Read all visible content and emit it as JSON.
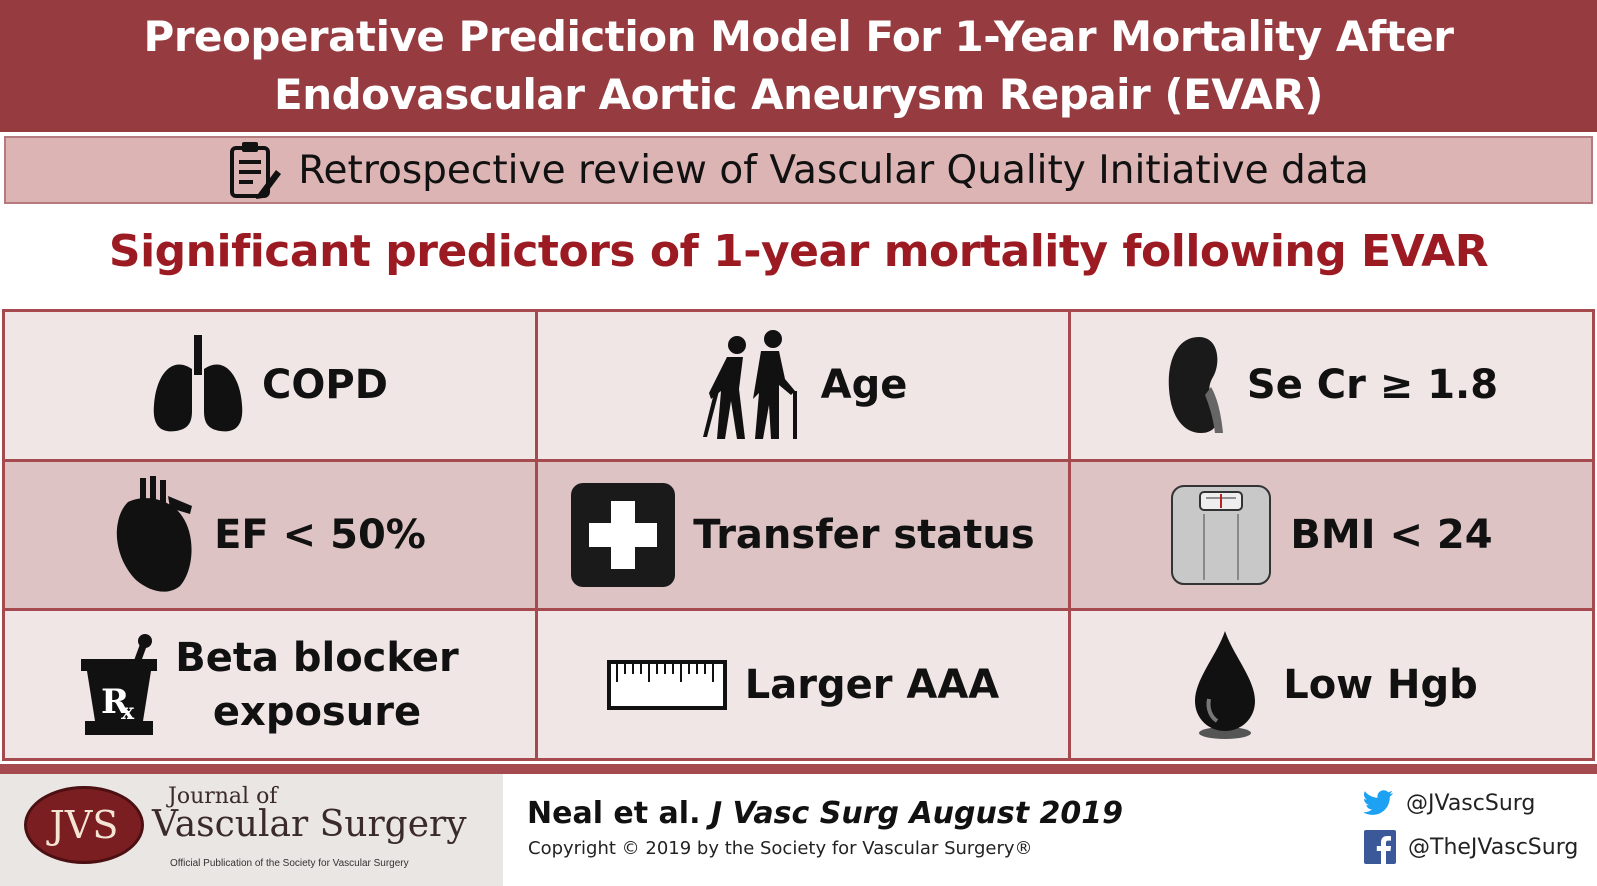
{
  "header": {
    "title_line1": "Preoperative Prediction Model For 1-Year Mortality After",
    "title_line2": "Endovascular Aortic Aneurysm Repair (EVAR)"
  },
  "study": {
    "icon": "clipboard-pencil-icon",
    "text": "Retrospective review of Vascular Quality Initiative data"
  },
  "section": {
    "heading": "Significant predictors of 1-year mortality following EVAR"
  },
  "predictors": [
    {
      "icon": "lungs-icon",
      "label": "COPD"
    },
    {
      "icon": "elderly-couple-icon",
      "label": "Age"
    },
    {
      "icon": "kidney-icon",
      "label": "Se Cr ≥ 1.8"
    },
    {
      "icon": "heart-icon",
      "label": "EF < 50%"
    },
    {
      "icon": "medical-cross-icon",
      "label": "Transfer status"
    },
    {
      "icon": "weight-scale-icon",
      "label": "BMI < 24"
    },
    {
      "icon": "mortar-pestle-rx-icon",
      "label_line1": "Beta blocker",
      "label_line2": "exposure"
    },
    {
      "icon": "ruler-icon",
      "label": "Larger AAA"
    },
    {
      "icon": "blood-drop-icon",
      "label": "Low Hgb"
    }
  ],
  "footer": {
    "logo_abbrev": "JVS",
    "journal_of": "Journal of",
    "journal_name": "Vascular Surgery",
    "journal_tagline": "Official Publication of the Society for Vascular Surgery",
    "citation_authors": "Neal et al.",
    "citation_journal": "J Vasc Surg August 2019",
    "copyright": "Copyright © 2019 by the Society for Vascular Surgery®",
    "twitter": "@JVascSurg",
    "facebook": "@TheJVascSurg"
  },
  "colors": {
    "title_bg": "#963b40",
    "subtitle_bg": "#dcb4b4",
    "heading_text": "#9c1b22",
    "cell_light": "#f1e6e6",
    "cell_dark": "#ddc3c4",
    "twitter_blue": "#1da1f2",
    "facebook_blue": "#3b5998"
  }
}
